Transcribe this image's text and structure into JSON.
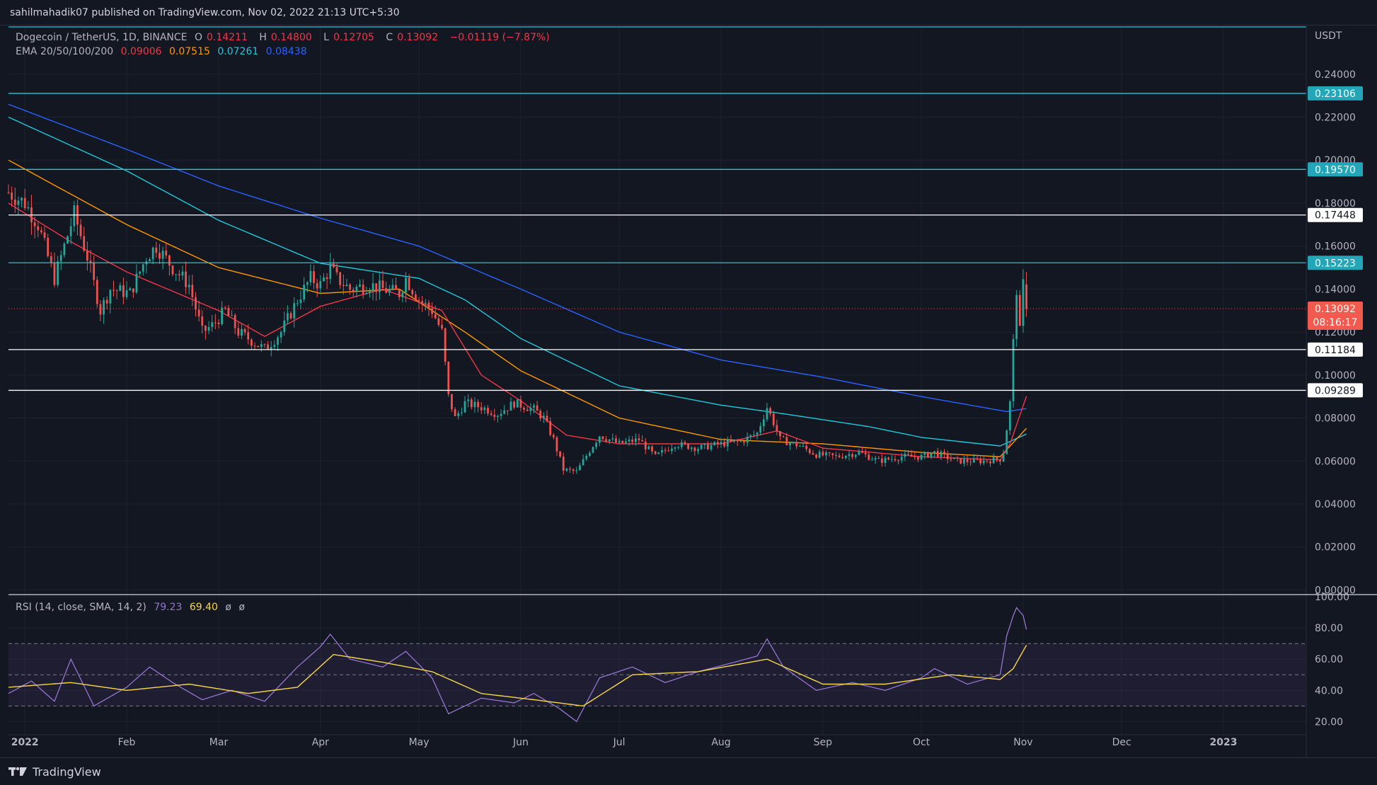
{
  "header": {
    "publish_text": "sahilmahadik07 published on TradingView.com, Nov 02, 2022 21:13 UTC+5:30"
  },
  "legend": {
    "symbol": "Dogecoin / TetherUS, 1D, BINANCE",
    "o_label": "O",
    "o_value": "0.14211",
    "h_label": "H",
    "h_value": "0.14800",
    "l_label": "L",
    "l_value": "0.12705",
    "c_label": "C",
    "c_value": "0.13092",
    "change": "−0.01119 (−7.87%)",
    "ema_title": "EMA 20/50/100/200",
    "ema20": "0.09006",
    "ema50": "0.07515",
    "ema100": "0.07261",
    "ema200": "0.08438"
  },
  "rsi_legend": {
    "title": "RSI (14, close, SMA, 14, 2)",
    "rsi_value": "79.23",
    "sma_value": "69.40",
    "na1": "ø",
    "na2": "ø"
  },
  "footer": {
    "brand": "TradingView"
  },
  "colors": {
    "background": "#131722",
    "grid": "#1e222d",
    "up": "#26a69a",
    "down": "#ef5350",
    "ema20": "#f23645",
    "ema50": "#ff9800",
    "ema100": "#22c7d8",
    "ema200": "#2962ff",
    "rsi": "#9575cd",
    "rsi_sma": "#f7d74a",
    "cyan_line": "#22c7d8",
    "white_line": "#ffffff"
  },
  "chart_data": {
    "type": "candlestick",
    "symbol": "Dogecoin / TetherUS",
    "interval": "1D",
    "exchange": "BINANCE",
    "currency": "USDT",
    "price_axis": {
      "ticks": [
        "0.00000",
        "0.02000",
        "0.04000",
        "0.06000",
        "0.08000",
        "0.10000",
        "0.12000",
        "0.14000",
        "0.16000",
        "0.18000",
        "0.20000",
        "0.22000",
        "0.24000"
      ],
      "range": [
        -0.0015,
        0.262
      ]
    },
    "time_axis": {
      "labels": [
        "2022",
        "Feb",
        "Mar",
        "Apr",
        "May",
        "Jun",
        "Jul",
        "Aug",
        "Sep",
        "Oct",
        "Nov",
        "Dec",
        "2023"
      ],
      "label_dates": [
        "2022-01-01",
        "2022-02-01",
        "2022-03-01",
        "2022-04-01",
        "2022-05-01",
        "2022-06-01",
        "2022-07-01",
        "2022-08-01",
        "2022-09-01",
        "2022-10-01",
        "2022-11-01",
        "2022-12-01",
        "2023-01-01"
      ],
      "range": [
        "2021-12-27",
        "2023-01-26"
      ]
    },
    "levels": [
      {
        "value": 0.23106,
        "label": "0.23106",
        "color": "#22c7d8",
        "style": "cyan"
      },
      {
        "value": 0.1957,
        "label": "0.19570",
        "color": "#22c7d8",
        "style": "cyan"
      },
      {
        "value": 0.17448,
        "label": "0.17448",
        "color": "#ffffff",
        "style": "white"
      },
      {
        "value": 0.15223,
        "label": "0.15223",
        "color": "#22c7d8",
        "style": "cyan"
      },
      {
        "value": 0.11184,
        "label": "0.11184",
        "color": "#ffffff",
        "style": "white"
      },
      {
        "value": 0.09289,
        "label": "0.09289",
        "color": "#ffffff",
        "style": "white"
      }
    ],
    "top_level": 0.262,
    "last_price": {
      "value": 0.13092,
      "label": "0.13092",
      "countdown": "08:16:17",
      "color": "#ef5350"
    },
    "price_keypoints": [
      [
        "2021-12-27",
        0.185
      ],
      [
        "2022-01-01",
        0.18
      ],
      [
        "2022-01-05",
        0.17
      ],
      [
        "2022-01-10",
        0.145
      ],
      [
        "2022-01-14",
        0.165
      ],
      [
        "2022-01-16",
        0.175
      ],
      [
        "2022-01-20",
        0.155
      ],
      [
        "2022-01-24",
        0.13
      ],
      [
        "2022-01-27",
        0.14
      ],
      [
        "2022-02-02",
        0.138
      ],
      [
        "2022-02-07",
        0.155
      ],
      [
        "2022-02-10",
        0.16
      ],
      [
        "2022-02-15",
        0.15
      ],
      [
        "2022-02-20",
        0.142
      ],
      [
        "2022-02-24",
        0.12
      ],
      [
        "2022-02-27",
        0.123
      ],
      [
        "2022-03-03",
        0.13
      ],
      [
        "2022-03-07",
        0.12
      ],
      [
        "2022-03-12",
        0.115
      ],
      [
        "2022-03-15",
        0.112
      ],
      [
        "2022-03-20",
        0.12
      ],
      [
        "2022-03-25",
        0.135
      ],
      [
        "2022-03-29",
        0.145
      ],
      [
        "2022-04-01",
        0.142
      ],
      [
        "2022-04-04",
        0.15
      ],
      [
        "2022-04-06",
        0.145
      ],
      [
        "2022-04-10",
        0.14
      ],
      [
        "2022-04-16",
        0.142
      ],
      [
        "2022-04-20",
        0.14
      ],
      [
        "2022-04-25",
        0.138
      ],
      [
        "2022-04-27",
        0.145
      ],
      [
        "2022-05-01",
        0.135
      ],
      [
        "2022-05-05",
        0.13
      ],
      [
        "2022-05-08",
        0.12
      ],
      [
        "2022-05-10",
        0.09
      ],
      [
        "2022-05-12",
        0.08
      ],
      [
        "2022-05-15",
        0.087
      ],
      [
        "2022-05-20",
        0.085
      ],
      [
        "2022-05-25",
        0.082
      ],
      [
        "2022-05-30",
        0.087
      ],
      [
        "2022-06-05",
        0.084
      ],
      [
        "2022-06-08",
        0.08
      ],
      [
        "2022-06-11",
        0.07
      ],
      [
        "2022-06-14",
        0.056
      ],
      [
        "2022-06-18",
        0.055
      ],
      [
        "2022-06-22",
        0.065
      ],
      [
        "2022-06-25",
        0.072
      ],
      [
        "2022-07-01",
        0.068
      ],
      [
        "2022-07-07",
        0.07
      ],
      [
        "2022-07-12",
        0.062
      ],
      [
        "2022-07-18",
        0.068
      ],
      [
        "2022-07-25",
        0.066
      ],
      [
        "2022-08-01",
        0.068
      ],
      [
        "2022-08-07",
        0.069
      ],
      [
        "2022-08-12",
        0.073
      ],
      [
        "2022-08-15",
        0.085
      ],
      [
        "2022-08-17",
        0.078
      ],
      [
        "2022-08-19",
        0.07
      ],
      [
        "2022-08-25",
        0.067
      ],
      [
        "2022-08-30",
        0.063
      ],
      [
        "2022-09-05",
        0.062
      ],
      [
        "2022-09-12",
        0.064
      ],
      [
        "2022-09-18",
        0.06
      ],
      [
        "2022-09-25",
        0.062
      ],
      [
        "2022-10-01",
        0.062
      ],
      [
        "2022-10-05",
        0.064
      ],
      [
        "2022-10-12",
        0.06
      ],
      [
        "2022-10-20",
        0.06
      ],
      [
        "2022-10-25",
        0.061
      ],
      [
        "2022-10-26",
        0.064
      ],
      [
        "2022-10-27",
        0.075
      ],
      [
        "2022-10-28",
        0.087
      ],
      [
        "2022-10-29",
        0.115
      ],
      [
        "2022-10-30",
        0.14
      ],
      [
        "2022-10-31",
        0.12
      ],
      [
        "2022-11-01",
        0.1421
      ],
      [
        "2022-11-02",
        0.1309
      ]
    ],
    "ema_keypoints": {
      "ema20": [
        [
          "2021-12-27",
          0.18
        ],
        [
          "2022-01-15",
          0.162
        ],
        [
          "2022-02-01",
          0.148
        ],
        [
          "2022-03-01",
          0.13
        ],
        [
          "2022-03-15",
          0.118
        ],
        [
          "2022-04-01",
          0.132
        ],
        [
          "2022-04-20",
          0.14
        ],
        [
          "2022-05-08",
          0.13
        ],
        [
          "2022-05-20",
          0.1
        ],
        [
          "2022-06-01",
          0.088
        ],
        [
          "2022-06-15",
          0.072
        ],
        [
          "2022-07-01",
          0.068
        ],
        [
          "2022-08-01",
          0.068
        ],
        [
          "2022-08-18",
          0.074
        ],
        [
          "2022-09-01",
          0.066
        ],
        [
          "2022-10-01",
          0.062
        ],
        [
          "2022-10-25",
          0.0605
        ],
        [
          "2022-10-28",
          0.068
        ],
        [
          "2022-11-02",
          0.0901
        ]
      ],
      "ema50": [
        [
          "2021-12-27",
          0.2
        ],
        [
          "2022-02-01",
          0.17
        ],
        [
          "2022-03-01",
          0.15
        ],
        [
          "2022-04-01",
          0.138
        ],
        [
          "2022-04-25",
          0.14
        ],
        [
          "2022-05-15",
          0.12
        ],
        [
          "2022-06-01",
          0.102
        ],
        [
          "2022-07-01",
          0.08
        ],
        [
          "2022-08-01",
          0.07
        ],
        [
          "2022-09-01",
          0.068
        ],
        [
          "2022-10-01",
          0.064
        ],
        [
          "2022-10-25",
          0.062
        ],
        [
          "2022-11-02",
          0.0752
        ]
      ],
      "ema100": [
        [
          "2021-12-27",
          0.22
        ],
        [
          "2022-02-01",
          0.195
        ],
        [
          "2022-03-01",
          0.172
        ],
        [
          "2022-04-01",
          0.152
        ],
        [
          "2022-05-01",
          0.145
        ],
        [
          "2022-05-15",
          0.135
        ],
        [
          "2022-06-01",
          0.117
        ],
        [
          "2022-07-01",
          0.095
        ],
        [
          "2022-08-01",
          0.086
        ],
        [
          "2022-08-20",
          0.082
        ],
        [
          "2022-09-15",
          0.076
        ],
        [
          "2022-10-01",
          0.071
        ],
        [
          "2022-10-25",
          0.067
        ],
        [
          "2022-11-02",
          0.0726
        ]
      ],
      "ema200": [
        [
          "2021-12-27",
          0.226
        ],
        [
          "2022-02-01",
          0.205
        ],
        [
          "2022-03-01",
          0.188
        ],
        [
          "2022-04-01",
          0.173
        ],
        [
          "2022-05-01",
          0.16
        ],
        [
          "2022-06-01",
          0.14
        ],
        [
          "2022-07-01",
          0.12
        ],
        [
          "2022-08-01",
          0.107
        ],
        [
          "2022-09-01",
          0.099
        ],
        [
          "2022-10-01",
          0.09
        ],
        [
          "2022-10-27",
          0.083
        ],
        [
          "2022-11-02",
          0.0844
        ]
      ]
    },
    "rsi_axis": {
      "ticks": [
        "20.00",
        "40.00",
        "60.00",
        "80.00",
        "100.00"
      ],
      "range": [
        12,
        100.5
      ],
      "band": [
        30,
        70
      ],
      "midline": 50
    },
    "rsi_keypoints": [
      [
        "2021-12-27",
        38
      ],
      [
        "2022-01-03",
        46
      ],
      [
        "2022-01-10",
        33
      ],
      [
        "2022-01-15",
        60
      ],
      [
        "2022-01-22",
        30
      ],
      [
        "2022-02-01",
        42
      ],
      [
        "2022-02-08",
        55
      ],
      [
        "2022-02-15",
        45
      ],
      [
        "2022-02-24",
        34
      ],
      [
        "2022-03-05",
        40
      ],
      [
        "2022-03-15",
        33
      ],
      [
        "2022-03-25",
        55
      ],
      [
        "2022-04-01",
        68
      ],
      [
        "2022-04-04",
        76
      ],
      [
        "2022-04-10",
        60
      ],
      [
        "2022-04-20",
        55
      ],
      [
        "2022-04-27",
        65
      ],
      [
        "2022-05-05",
        48
      ],
      [
        "2022-05-10",
        25
      ],
      [
        "2022-05-20",
        35
      ],
      [
        "2022-05-30",
        32
      ],
      [
        "2022-06-05",
        38
      ],
      [
        "2022-06-13",
        28
      ],
      [
        "2022-06-18",
        20
      ],
      [
        "2022-06-25",
        48
      ],
      [
        "2022-07-05",
        55
      ],
      [
        "2022-07-15",
        45
      ],
      [
        "2022-07-25",
        52
      ],
      [
        "2022-08-05",
        58
      ],
      [
        "2022-08-12",
        62
      ],
      [
        "2022-08-15",
        73
      ],
      [
        "2022-08-20",
        55
      ],
      [
        "2022-08-30",
        40
      ],
      [
        "2022-09-10",
        45
      ],
      [
        "2022-09-20",
        40
      ],
      [
        "2022-10-01",
        48
      ],
      [
        "2022-10-05",
        54
      ],
      [
        "2022-10-15",
        44
      ],
      [
        "2022-10-25",
        50
      ],
      [
        "2022-10-27",
        75
      ],
      [
        "2022-10-29",
        88
      ],
      [
        "2022-10-30",
        93
      ],
      [
        "2022-11-01",
        88
      ],
      [
        "2022-11-02",
        79
      ]
    ],
    "rsi_sma_keypoints": [
      [
        "2021-12-27",
        42
      ],
      [
        "2022-01-15",
        45
      ],
      [
        "2022-02-01",
        40
      ],
      [
        "2022-02-20",
        44
      ],
      [
        "2022-03-10",
        38
      ],
      [
        "2022-03-25",
        42
      ],
      [
        "2022-04-05",
        63
      ],
      [
        "2022-04-20",
        58
      ],
      [
        "2022-05-05",
        52
      ],
      [
        "2022-05-20",
        38
      ],
      [
        "2022-06-05",
        34
      ],
      [
        "2022-06-20",
        30
      ],
      [
        "2022-07-05",
        50
      ],
      [
        "2022-07-25",
        52
      ],
      [
        "2022-08-15",
        60
      ],
      [
        "2022-09-01",
        44
      ],
      [
        "2022-09-20",
        44
      ],
      [
        "2022-10-10",
        50
      ],
      [
        "2022-10-25",
        47
      ],
      [
        "2022-10-29",
        54
      ],
      [
        "2022-11-02",
        69
      ]
    ]
  }
}
